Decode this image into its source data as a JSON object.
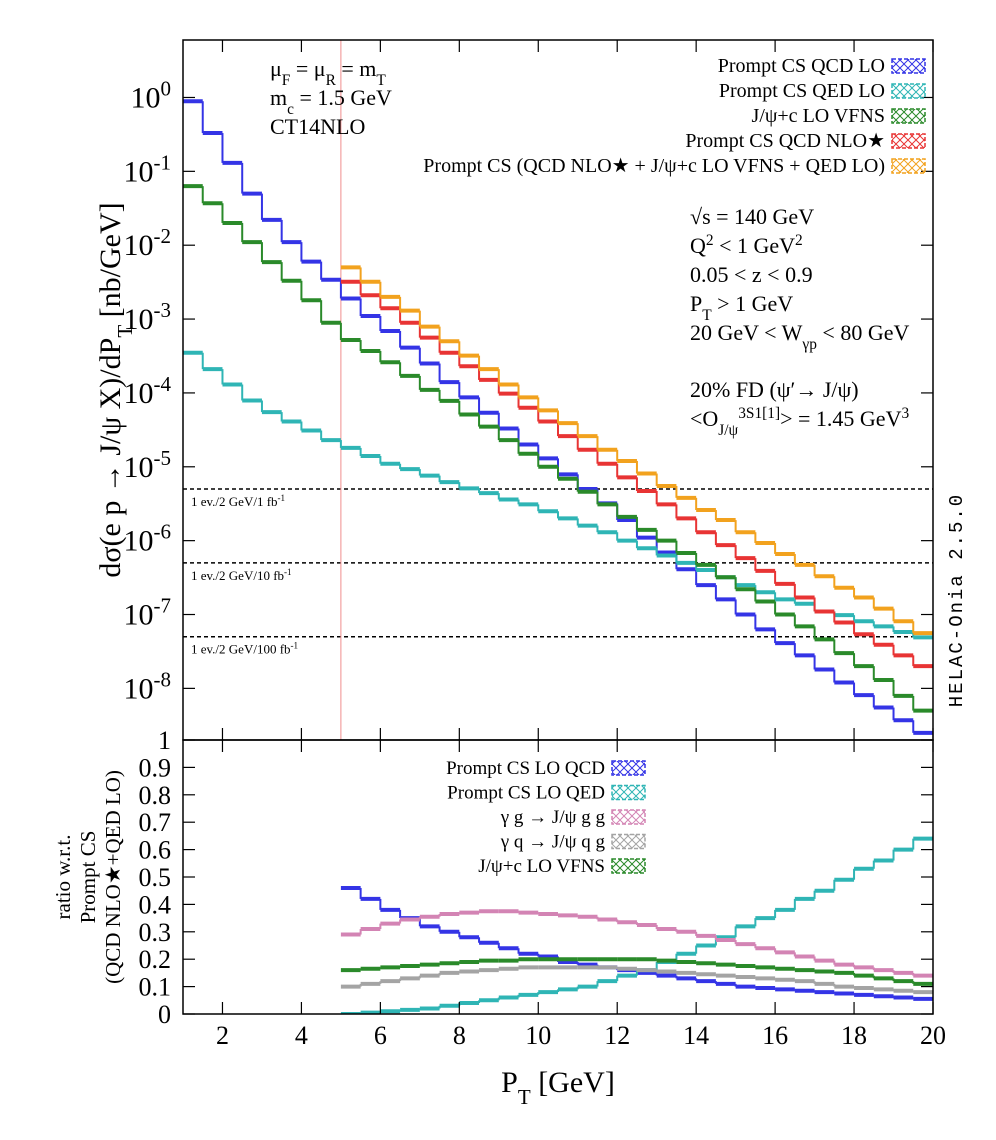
{
  "chart_data": [
    {
      "type": "histogram",
      "ylabel": [
        {
          "text": "dσ(e p → J/ψ X)/dP"
        },
        {
          "text": "T",
          "style": "sub"
        },
        {
          "text": " [nb/GeV]"
        }
      ],
      "log_y": true,
      "ylim": [
        2e-09,
        6
      ],
      "yticks": [
        {
          "value": 1e-08,
          "label": "10",
          "sup": "-8"
        },
        {
          "value": 1e-07,
          "label": "10",
          "sup": "-7"
        },
        {
          "value": 1e-06,
          "label": "10",
          "sup": "-6"
        },
        {
          "value": 1e-05,
          "label": "10",
          "sup": "-5"
        },
        {
          "value": 0.0001,
          "label": "10",
          "sup": "-4"
        },
        {
          "value": 0.001,
          "label": "10",
          "sup": "-3"
        },
        {
          "value": 0.01,
          "label": "10",
          "sup": "-2"
        },
        {
          "value": 0.1,
          "label": "10",
          "sup": "-1"
        },
        {
          "value": 1,
          "label": "10",
          "sup": "0"
        }
      ],
      "xlim": [
        1,
        20
      ],
      "xticks": [
        2,
        4,
        6,
        8,
        10,
        12,
        14,
        16,
        18,
        20
      ],
      "bins": [
        1,
        1.5,
        2,
        2.5,
        3,
        3.5,
        4,
        4.5,
        5,
        5.5,
        6,
        6.5,
        7,
        7.5,
        8,
        8.5,
        9,
        9.5,
        10,
        10.5,
        11,
        11.5,
        12,
        12.5,
        13,
        13.5,
        14,
        14.5,
        15,
        15.5,
        16,
        16.5,
        17,
        17.5,
        18,
        18.5,
        19,
        19.5,
        20
      ],
      "legend": "upper right",
      "series": [
        {
          "name": "Prompt CS QCD LO",
          "color": "#3434e6",
          "values": [
            0.89,
            0.33,
            0.13,
            0.05,
            0.022,
            0.011,
            0.006,
            0.0034,
            0.0019,
            0.0011,
            0.00069,
            0.00041,
            0.00025,
            0.00014,
            8.7e-05,
            5.4e-05,
            3.3e-05,
            2e-05,
            1.3e-05,
            7.9e-06,
            5e-06,
            3.2e-06,
            1.9e-06,
            1.1e-06,
            6.9e-07,
            4.1e-07,
            2.5e-07,
            1.6e-07,
            1e-07,
            6.3e-08,
            4.1e-08,
            2.8e-08,
            1.8e-08,
            1.2e-08,
            8.1e-09,
            5.5e-09,
            3.7e-09,
            2.5e-09
          ]
        },
        {
          "name": "Prompt CS QED LO",
          "color": "#2fb5b5",
          "values": [
            0.00035,
            0.00021,
            0.00013,
            7.9e-05,
            5.5e-05,
            4.1e-05,
            3.1e-05,
            2.3e-05,
            1.8e-05,
            1.4e-05,
            1.1e-05,
            9.3e-06,
            7.6e-06,
            6.2e-06,
            5.1e-06,
            4.4e-06,
            3.6e-06,
            3.1e-06,
            2.5e-06,
            2e-06,
            1.6e-06,
            1.3e-06,
            1e-06,
            7.9e-07,
            6.3e-07,
            5e-07,
            4e-07,
            3.2e-07,
            2.5e-07,
            2e-07,
            1.6e-07,
            1.4e-07,
            1.1e-07,
            9.8e-08,
            8.1e-08,
            6.9e-08,
            5.8e-08,
            4.9e-08
          ]
        },
        {
          "name": "J/ψ+c LO VFNS",
          "color": "#2a8a2a",
          "values": [
            0.063,
            0.037,
            0.02,
            0.011,
            0.0059,
            0.0033,
            0.0018,
            0.00089,
            0.00052,
            0.00037,
            0.00026,
            0.00017,
            0.00011,
            7.8e-05,
            5.1e-05,
            3.5e-05,
            2.3e-05,
            1.5e-05,
            1e-05,
            6.9e-06,
            4.6e-06,
            3.1e-06,
            2.1e-06,
            1.4e-06,
            1e-06,
            6.8e-07,
            4.7e-07,
            3.2e-07,
            2.2e-07,
            1.5e-07,
            1e-07,
            6.9e-08,
            4.6e-08,
            3e-08,
            2e-08,
            1.3e-08,
            7.9e-09,
            5e-09
          ]
        },
        {
          "name": "Prompt CS QCD NLO★",
          "color": "#e83434",
          "values": [
            null,
            null,
            null,
            null,
            null,
            null,
            null,
            null,
            0.0032,
            0.0021,
            0.0014,
            0.00089,
            0.00056,
            0.00035,
            0.00023,
            0.00015,
            9.8e-05,
            6.3e-05,
            4.1e-05,
            2.6e-05,
            1.7e-05,
            1.1e-05,
            7.2e-06,
            4.7e-06,
            3.1e-06,
            2e-06,
            1.3e-06,
            8.7e-07,
            5.8e-07,
            3.9e-07,
            2.6e-07,
            1.7e-07,
            1.1e-07,
            7.8e-08,
            5.4e-08,
            3.9e-08,
            2.8e-08,
            2e-08
          ]
        },
        {
          "name": "Prompt CS (QCD NLO★ + J/ψ+c LO VFNS + QED LO)",
          "color": "#f2a21e",
          "values": [
            null,
            null,
            null,
            null,
            null,
            null,
            null,
            null,
            0.005,
            0.0032,
            0.002,
            0.0013,
            0.00079,
            0.0005,
            0.00032,
            0.00021,
            0.00013,
            8.7e-05,
            5.8e-05,
            3.9e-05,
            2.6e-05,
            1.7e-05,
            1.2e-05,
            8.1e-06,
            5.5e-06,
            3.8e-06,
            2.6e-06,
            1.9e-06,
            1.3e-06,
            9.3e-07,
            6.6e-07,
            4.7e-07,
            3.3e-07,
            2.3e-07,
            1.7e-07,
            1.2e-07,
            8.1e-08,
            5.6e-08
          ]
        }
      ],
      "hlines": [
        {
          "value": 5e-06,
          "label": [
            {
              "text": "1 ev./2 GeV/1 fb"
            },
            {
              "text": "-1",
              "style": "sup"
            }
          ]
        },
        {
          "value": 5e-07,
          "label": [
            {
              "text": "1 ev./2 GeV/10 fb"
            },
            {
              "text": "-1",
              "style": "sup"
            }
          ]
        },
        {
          "value": 5e-08,
          "label": [
            {
              "text": "1 ev./2 GeV/100 fb"
            },
            {
              "text": "-1",
              "style": "sup"
            }
          ]
        }
      ],
      "vlines": [
        {
          "value": 5,
          "color": "#f08c8c"
        }
      ],
      "annotations_left": [
        [
          {
            "text": "μ"
          },
          {
            "text": "F",
            "style": "sub"
          },
          {
            "text": " = μ"
          },
          {
            "text": "R",
            "style": "sub"
          },
          {
            "text": " = m"
          },
          {
            "text": "T",
            "style": "sub"
          }
        ],
        [
          {
            "text": "m"
          },
          {
            "text": "c",
            "style": "sub"
          },
          {
            "text": " = 1.5 GeV"
          }
        ],
        [
          {
            "text": "CT14NLO"
          }
        ]
      ],
      "annotations_right": [
        [
          {
            "text": "√s = 140 GeV"
          }
        ],
        [
          {
            "text": "Q"
          },
          {
            "text": "2",
            "style": "sup"
          },
          {
            "text": " < 1 GeV"
          },
          {
            "text": "2",
            "style": "sup"
          }
        ],
        [
          {
            "text": "0.05 < z < 0.9"
          }
        ],
        [
          {
            "text": "P"
          },
          {
            "text": "T",
            "style": "sub"
          },
          {
            "text": " > 1 GeV"
          }
        ],
        [
          {
            "text": "20 GeV < W"
          },
          {
            "text": "γp",
            "style": "sub"
          },
          {
            "text": " < 80 GeV"
          }
        ],
        [
          {
            "text": "20% FD (ψ′→ J/ψ)"
          }
        ],
        [
          {
            "text": "<O"
          },
          {
            "text": "J/ψ",
            "style": "sub"
          },
          {
            "text": "3S1[1]",
            "style": "sup"
          },
          {
            "text": "> = 1.45 GeV"
          },
          {
            "text": "3",
            "style": "sup"
          }
        ]
      ],
      "watermark": "HELAC-Onia 2.5.0"
    },
    {
      "type": "histogram",
      "ylabel": [
        [
          {
            "text": "ratio w.r.t."
          }
        ],
        [
          {
            "text": "Prompt CS"
          }
        ],
        [
          {
            "text": "(QCD NLO★+QED LO)"
          }
        ]
      ],
      "ylim": [
        0,
        1
      ],
      "yticks": [
        0,
        0.1,
        0.2,
        0.3,
        0.4,
        0.5,
        0.6,
        0.7,
        0.8,
        0.9,
        1
      ],
      "xlim": [
        1,
        20
      ],
      "xticks": [
        2,
        4,
        6,
        8,
        10,
        12,
        14,
        16,
        18,
        20
      ],
      "xlabel": [
        {
          "text": "P"
        },
        {
          "text": "T",
          "style": "sub"
        },
        {
          "text": " [GeV]"
        }
      ],
      "bins": [
        1,
        1.5,
        2,
        2.5,
        3,
        3.5,
        4,
        4.5,
        5,
        5.5,
        6,
        6.5,
        7,
        7.5,
        8,
        8.5,
        9,
        9.5,
        10,
        10.5,
        11,
        11.5,
        12,
        12.5,
        13,
        13.5,
        14,
        14.5,
        15,
        15.5,
        16,
        16.5,
        17,
        17.5,
        18,
        18.5,
        19,
        19.5,
        20
      ],
      "legend": "upper center",
      "series": [
        {
          "name": "Prompt CS LO QCD",
          "color": "#3434e6",
          "values": [
            null,
            null,
            null,
            null,
            null,
            null,
            null,
            null,
            0.46,
            0.42,
            0.38,
            0.35,
            0.32,
            0.3,
            0.28,
            0.26,
            0.24,
            0.22,
            0.21,
            0.19,
            0.18,
            0.17,
            0.16,
            0.15,
            0.14,
            0.13,
            0.12,
            0.11,
            0.1,
            0.095,
            0.09,
            0.085,
            0.08,
            0.075,
            0.07,
            0.065,
            0.06,
            0.055
          ]
        },
        {
          "name": "Prompt CS LO QED",
          "color": "#2fb5b5",
          "values": [
            null,
            null,
            null,
            null,
            null,
            null,
            null,
            null,
            0.0,
            0.005,
            0.01,
            0.015,
            0.02,
            0.03,
            0.04,
            0.05,
            0.06,
            0.07,
            0.08,
            0.09,
            0.1,
            0.12,
            0.14,
            0.16,
            0.19,
            0.22,
            0.25,
            0.28,
            0.32,
            0.35,
            0.38,
            0.42,
            0.45,
            0.49,
            0.53,
            0.56,
            0.6,
            0.64
          ]
        },
        {
          "name": "γ g → J/ψ g g",
          "color": "#d384b4",
          "values": [
            null,
            null,
            null,
            null,
            null,
            null,
            null,
            null,
            0.29,
            0.31,
            0.33,
            0.345,
            0.355,
            0.365,
            0.37,
            0.375,
            0.375,
            0.37,
            0.365,
            0.36,
            0.355,
            0.345,
            0.335,
            0.325,
            0.31,
            0.3,
            0.285,
            0.27,
            0.255,
            0.24,
            0.225,
            0.21,
            0.195,
            0.18,
            0.17,
            0.16,
            0.15,
            0.14
          ]
        },
        {
          "name": "γ q → J/ψ q g",
          "color": "#a4a4a4",
          "values": [
            null,
            null,
            null,
            null,
            null,
            null,
            null,
            null,
            0.1,
            0.11,
            0.12,
            0.13,
            0.14,
            0.15,
            0.155,
            0.16,
            0.165,
            0.17,
            0.17,
            0.17,
            0.17,
            0.17,
            0.165,
            0.16,
            0.155,
            0.15,
            0.145,
            0.14,
            0.135,
            0.13,
            0.125,
            0.12,
            0.11,
            0.1,
            0.095,
            0.09,
            0.085,
            0.08
          ]
        },
        {
          "name": "J/ψ+c LO VFNS",
          "color": "#2a8a2a",
          "values": [
            null,
            null,
            null,
            null,
            null,
            null,
            null,
            null,
            0.16,
            0.165,
            0.17,
            0.175,
            0.18,
            0.185,
            0.19,
            0.195,
            0.195,
            0.2,
            0.2,
            0.2,
            0.2,
            0.2,
            0.2,
            0.2,
            0.195,
            0.19,
            0.185,
            0.18,
            0.175,
            0.17,
            0.165,
            0.16,
            0.155,
            0.15,
            0.14,
            0.13,
            0.12,
            0.11
          ]
        }
      ]
    }
  ]
}
